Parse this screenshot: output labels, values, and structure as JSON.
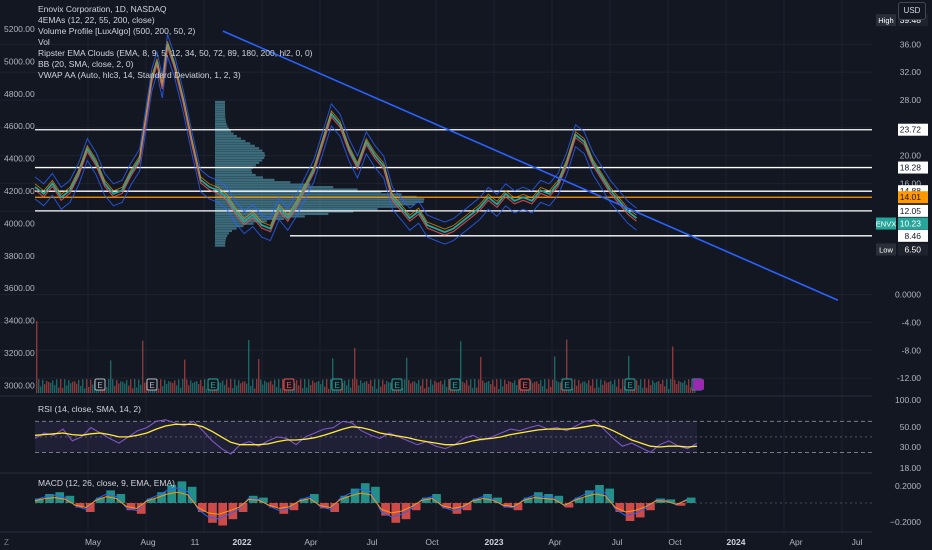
{
  "header": {
    "symbol_line": "Enovix Corporation, 1D, NASDAQ",
    "usd_label": "USD",
    "indicators": [
      "4EMAs (12, 22, 55, 200, close)",
      "Volume Profile [LuxAlgo] (500, 200, 50, 2)",
      "Vol",
      "Ripster EMA Clouds (EMA, 8, 9, 5, 12, 34, 50, 72, 89, 180, 200, hl2, 0, 0)",
      "BB (20, SMA, close, 2, 0)",
      "VWAP AA (Auto, hlc3, 14, Standard Deviation, 1, 2, 3)"
    ],
    "zoom_button": "Z"
  },
  "colors": {
    "background": "#131722",
    "grid": "#1e222d",
    "trendline": "#2962ff",
    "level_line": "#ffffff",
    "orange_line": "#ff9800",
    "price_up": "#26a69a",
    "price_down": "#ef5350",
    "rsi_line": "#7e57c2",
    "rsi_ma": "#ffeb3b",
    "volume_profile": "#5fb3c4"
  },
  "chart_data": [
    {
      "type": "line",
      "name": "price",
      "title": "Enovix Corporation, 1D, NASDAQ",
      "x_ticks": [
        "May",
        "Aug",
        "11",
        "2022",
        "Apr",
        "Jul",
        "Oct",
        "2023",
        "Apr",
        "Jul",
        "Oct",
        "2024",
        "Apr",
        "Jul"
      ],
      "right_axis_ticks": [
        "36.00",
        "32.00",
        "28.00",
        "24.00",
        "20.00",
        "16.00",
        "12.00",
        "0.0000",
        "-4.00",
        "-8.00",
        "-12.00"
      ],
      "left_axis_ticks": [
        "5200.00",
        "5000.00",
        "4800.00",
        "4600.00",
        "4400.00",
        "4200.00",
        "4000.00",
        "3800.00",
        "3600.00",
        "3400.00",
        "3200.00",
        "3000.00"
      ],
      "ylim": [
        -14,
        39.5
      ],
      "series": [
        {
          "x": [
            0,
            5,
            10,
            15,
            20,
            25,
            30,
            35,
            40,
            45,
            50,
            55,
            60,
            64,
            67,
            70,
            73,
            76,
            80,
            85,
            90,
            95,
            100,
            105,
            110,
            115,
            120,
            125,
            130,
            135,
            140,
            145,
            150,
            155,
            160,
            165,
            170,
            175,
            180,
            185,
            190,
            195,
            200,
            205,
            210,
            215,
            220,
            225,
            230,
            235,
            240,
            245,
            250,
            255,
            260,
            265,
            270,
            275,
            280,
            285,
            290,
            295,
            300,
            305,
            310,
            315,
            320,
            325,
            330,
            335,
            340,
            345,
            350,
            355,
            360,
            365,
            370,
            375,
            380,
            385,
            390,
            395,
            400,
            405,
            410,
            415,
            420,
            425,
            430,
            435,
            440,
            445,
            450,
            455,
            460
          ],
          "values": [
            15.5,
            14.5,
            16.0,
            14.0,
            15.0,
            17.5,
            21.0,
            19.0,
            16.0,
            14.5,
            15.0,
            17.5,
            19.5,
            26.0,
            31.0,
            33.5,
            30.0,
            36.0,
            33.0,
            28.0,
            22.0,
            16.5,
            15.5,
            15.0,
            14.0,
            12.0,
            10.5,
            11.5,
            10.0,
            9.5,
            12.5,
            11.0,
            13.0,
            15.5,
            18.0,
            22.0,
            26.0,
            24.5,
            21.0,
            18.5,
            22.0,
            20.0,
            18.5,
            14.0,
            12.5,
            11.0,
            12.0,
            10.0,
            9.5,
            9.0,
            9.5,
            10.5,
            11.5,
            12.5,
            14.0,
            13.0,
            14.5,
            13.5,
            14.0,
            13.5,
            15.0,
            14.5,
            16.0,
            19.0,
            23.0,
            22.0,
            19.0,
            17.0,
            15.0,
            13.5,
            12.0,
            11.0,
            10.23,
            10.5,
            10.23,
            10.23,
            10.23,
            10.23,
            10.23,
            10.23,
            10.23,
            10.23,
            10.23,
            10.23,
            10.23,
            10.23,
            10.23,
            10.23,
            10.23,
            10.23,
            10.23,
            10.23,
            10.23,
            10.23,
            10.23
          ]
        }
      ],
      "price_labels": [
        {
          "text": "High",
          "value": "39.48"
        },
        {
          "text": "",
          "value": "23.72"
        },
        {
          "text": "",
          "value": "18.28"
        },
        {
          "text": "",
          "value": "14.88"
        },
        {
          "text": "",
          "value": "14.01"
        },
        {
          "text": "",
          "value": "12.05"
        },
        {
          "text": "ENVX",
          "value": "10.23"
        },
        {
          "text": "",
          "value": "8.46"
        },
        {
          "text": "Low",
          "value": "6.50"
        }
      ],
      "levels": [
        23.72,
        18.28,
        14.88,
        14.01,
        12.05,
        8.46
      ],
      "trendline": {
        "from": [
          36.5,
          37.8
        ],
        "to": [
          0,
          -1.2
        ]
      },
      "earnings_markers": [
        "E",
        "E",
        "E",
        "E",
        "E",
        "E",
        "E",
        "E",
        "E",
        "E",
        "E",
        "E"
      ]
    },
    {
      "type": "line",
      "name": "rsi",
      "title": "RSI (14, close, SMA, 14, 2)",
      "right_axis_ticks": [
        "100.00",
        "50.00",
        "30.00",
        "18.00"
      ],
      "bands": [
        70,
        30
      ],
      "ylim": [
        10,
        100
      ],
      "series": [
        {
          "name": "RSI",
          "values": [
            48,
            55,
            52,
            60,
            45,
            50,
            62,
            55,
            48,
            42,
            50,
            58,
            62,
            70,
            72,
            68,
            64,
            70,
            58,
            45,
            35,
            28,
            40,
            44,
            38,
            45,
            50,
            48,
            40,
            50,
            55,
            60,
            62,
            70,
            68,
            58,
            52,
            48,
            55,
            50,
            45,
            40,
            44,
            38,
            35,
            40,
            48,
            52,
            46,
            50,
            55,
            60,
            58,
            62,
            65,
            60,
            62,
            58,
            64,
            70,
            72,
            60,
            48,
            38,
            42,
            36,
            30,
            40,
            45,
            38,
            35,
            42
          ]
        },
        {
          "name": "RSI-based MA",
          "values": [
            52,
            53,
            54,
            55,
            53,
            52,
            54,
            55,
            53,
            50,
            50,
            52,
            55,
            60,
            64,
            66,
            66,
            66,
            63,
            57,
            50,
            43,
            40,
            40,
            40,
            41,
            44,
            46,
            46,
            47,
            49,
            52,
            56,
            60,
            63,
            62,
            59,
            55,
            53,
            51,
            49,
            46,
            44,
            42,
            40,
            40,
            42,
            45,
            47,
            48,
            50,
            53,
            55,
            57,
            59,
            60,
            60,
            60,
            61,
            63,
            65,
            63,
            58,
            52,
            46,
            42,
            38,
            37,
            38,
            38,
            37,
            38
          ]
        }
      ]
    },
    {
      "type": "bar",
      "name": "macd",
      "title": "MACD (12, 26, close, 9, EMA, EMA)",
      "right_axis_ticks": [
        "0.2000",
        "−0.2000"
      ],
      "ylim": [
        -0.3,
        0.3
      ],
      "series": [
        {
          "name": "Histogram",
          "values": [
            0.05,
            0.1,
            0.12,
            0.08,
            -0.05,
            -0.1,
            0.06,
            0.14,
            0.1,
            -0.08,
            -0.12,
            0.05,
            0.12,
            0.2,
            0.24,
            0.18,
            -0.1,
            -0.22,
            -0.25,
            -0.18,
            -0.1,
            0.08,
            0.06,
            -0.05,
            -0.12,
            -0.08,
            0.05,
            0.1,
            -0.06,
            -0.1,
            0.08,
            0.16,
            0.22,
            0.18,
            -0.14,
            -0.22,
            -0.18,
            -0.08,
            0.06,
            0.1,
            -0.06,
            -0.12,
            -0.08,
            0.05,
            0.1,
            0.06,
            -0.05,
            -0.08,
            0.06,
            0.12,
            0.1,
            0.08,
            -0.05,
            0.06,
            0.14,
            0.2,
            0.16,
            -0.1,
            -0.2,
            -0.16,
            -0.08,
            0.05,
            0.04,
            -0.03,
            0.06
          ]
        }
      ]
    }
  ]
}
